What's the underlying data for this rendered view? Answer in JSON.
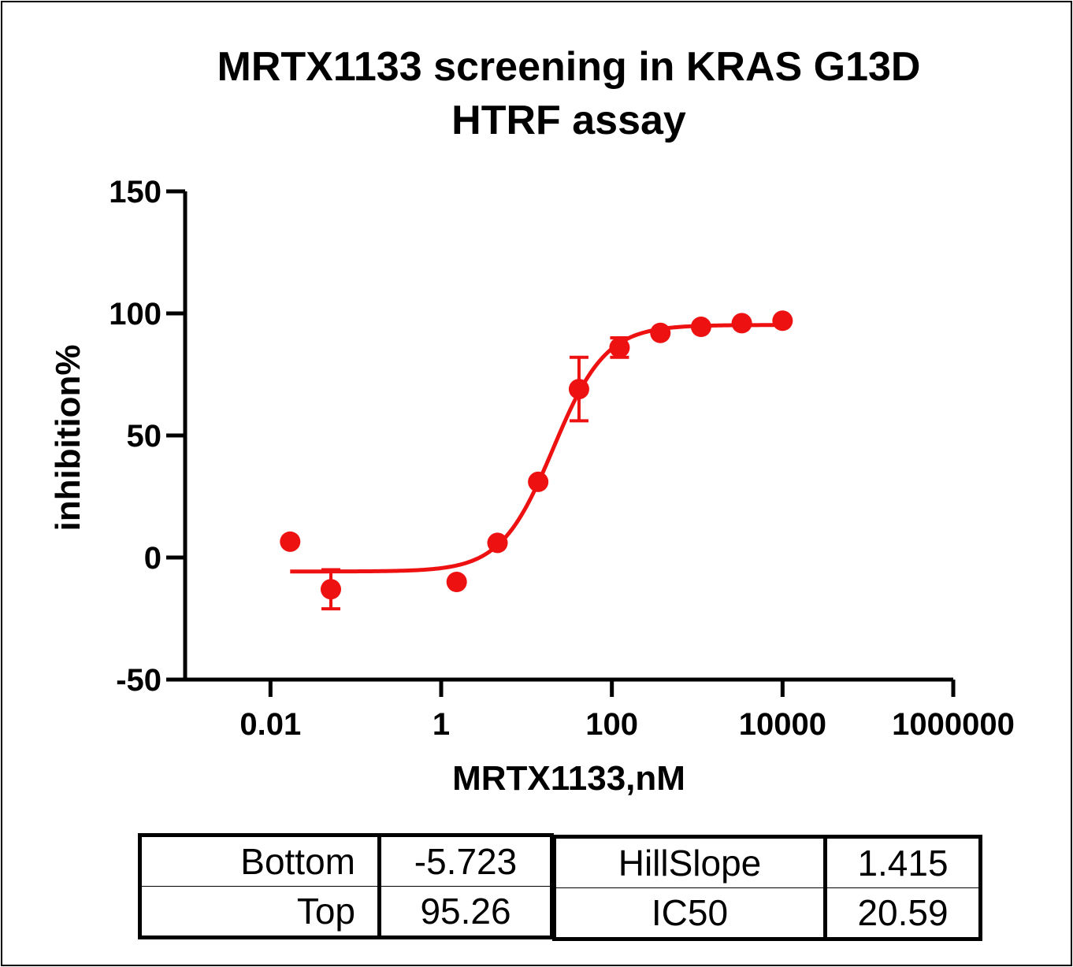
{
  "chart_data": {
    "type": "scatter",
    "title": "MRTX1133 screening in KRAS G13D HTRF assay",
    "title_lines": [
      "MRTX1133 screening in KRAS G13D",
      "HTRF assay"
    ],
    "xlabel": "MRTX1133,nM",
    "ylabel": "inhibition%",
    "x_scale": "log",
    "xlim": [
      0.001,
      1000000
    ],
    "ylim": [
      -50,
      150
    ],
    "x_ticks": [
      0.01,
      1,
      100,
      10000,
      1000000
    ],
    "x_tick_labels": [
      "0.01",
      "1",
      "100",
      "10000",
      "1000000"
    ],
    "y_ticks": [
      -50,
      0,
      50,
      100,
      150
    ],
    "y_tick_labels": [
      "-50",
      "0",
      "50",
      "100",
      "150"
    ],
    "grid": false,
    "color": "#ee1111",
    "points": [
      {
        "x": 0.017,
        "y": 6.5,
        "err": 0
      },
      {
        "x": 0.051,
        "y": -13,
        "err": 8
      },
      {
        "x": 1.52,
        "y": -10,
        "err": 0
      },
      {
        "x": 4.57,
        "y": 6,
        "err": 0
      },
      {
        "x": 13.7,
        "y": 31,
        "err": 0
      },
      {
        "x": 41.2,
        "y": 69,
        "err": 13
      },
      {
        "x": 123,
        "y": 86,
        "err": 4
      },
      {
        "x": 370,
        "y": 92,
        "err": 0
      },
      {
        "x": 1110,
        "y": 94.5,
        "err": 0
      },
      {
        "x": 3330,
        "y": 96,
        "err": 0
      },
      {
        "x": 10000,
        "y": 97,
        "err": 0
      }
    ],
    "fit": {
      "model": "four-parameter logistic",
      "bottom": -5.723,
      "top": 95.26,
      "ic50": 20.59,
      "hillslope": 1.415,
      "x_range": [
        0.017,
        10000
      ]
    }
  },
  "params_table": {
    "left": [
      {
        "name": "Bottom",
        "value": "-5.723"
      },
      {
        "name": "Top",
        "value": "95.26"
      }
    ],
    "right": [
      {
        "name": "HillSlope",
        "value": "1.415"
      },
      {
        "name": "IC50",
        "value": "20.59"
      }
    ]
  }
}
